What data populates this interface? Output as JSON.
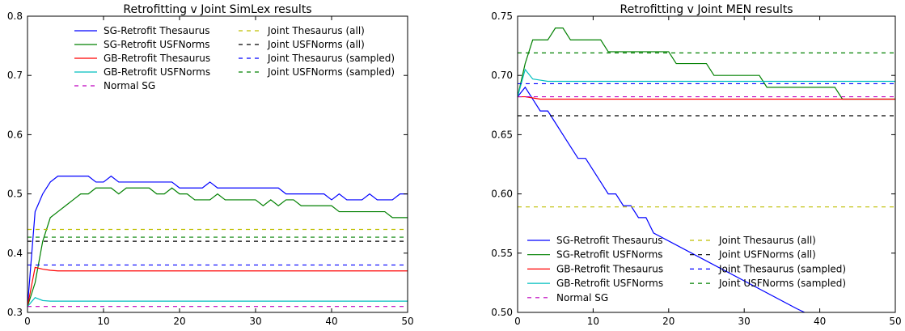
{
  "chart_data": [
    {
      "type": "line",
      "title": "Retrofitting v Joint SimLex results",
      "xlabel": "",
      "ylabel": "",
      "xlim": [
        0,
        50
      ],
      "ylim": [
        0.3,
        0.8
      ],
      "xticks": [
        "0",
        "10",
        "20",
        "30",
        "40",
        "50"
      ],
      "yticks": [
        "0.3",
        "0.4",
        "0.5",
        "0.6",
        "0.7",
        "0.8"
      ],
      "legend_location": "top",
      "series": [
        {
          "name": "SG-Retrofit Thesaurus",
          "color": "#0000ff",
          "style": "solid",
          "x": [
            0,
            1,
            2,
            3,
            4,
            5,
            6,
            7,
            8,
            9,
            10,
            11,
            12,
            13,
            14,
            15,
            16,
            17,
            18,
            19,
            20,
            21,
            22,
            23,
            24,
            25,
            26,
            27,
            28,
            29,
            30,
            31,
            32,
            33,
            34,
            35,
            36,
            37,
            38,
            39,
            40,
            41,
            42,
            43,
            44,
            45,
            46,
            47,
            48,
            49,
            50
          ],
          "y": [
            0.31,
            0.47,
            0.5,
            0.52,
            0.53,
            0.53,
            0.53,
            0.53,
            0.53,
            0.52,
            0.52,
            0.53,
            0.52,
            0.52,
            0.52,
            0.52,
            0.52,
            0.52,
            0.52,
            0.52,
            0.51,
            0.51,
            0.51,
            0.51,
            0.52,
            0.51,
            0.51,
            0.51,
            0.51,
            0.51,
            0.51,
            0.51,
            0.51,
            0.51,
            0.5,
            0.5,
            0.5,
            0.5,
            0.5,
            0.5,
            0.49,
            0.5,
            0.49,
            0.49,
            0.49,
            0.5,
            0.49,
            0.49,
            0.49,
            0.5,
            0.5
          ]
        },
        {
          "name": "SG-Retrofit USFNorms",
          "color": "#008000",
          "style": "solid",
          "x": [
            0,
            1,
            2,
            3,
            4,
            5,
            6,
            7,
            8,
            9,
            10,
            11,
            12,
            13,
            14,
            15,
            16,
            17,
            18,
            19,
            20,
            21,
            22,
            23,
            24,
            25,
            26,
            27,
            28,
            29,
            30,
            31,
            32,
            33,
            34,
            35,
            36,
            37,
            38,
            39,
            40,
            41,
            42,
            43,
            44,
            45,
            46,
            47,
            48,
            49,
            50
          ],
          "y": [
            0.31,
            0.35,
            0.42,
            0.46,
            0.47,
            0.48,
            0.49,
            0.5,
            0.5,
            0.51,
            0.51,
            0.51,
            0.5,
            0.51,
            0.51,
            0.51,
            0.51,
            0.5,
            0.5,
            0.51,
            0.5,
            0.5,
            0.49,
            0.49,
            0.49,
            0.5,
            0.49,
            0.49,
            0.49,
            0.49,
            0.49,
            0.48,
            0.49,
            0.48,
            0.49,
            0.49,
            0.48,
            0.48,
            0.48,
            0.48,
            0.48,
            0.47,
            0.47,
            0.47,
            0.47,
            0.47,
            0.47,
            0.47,
            0.46,
            0.46,
            0.46
          ]
        },
        {
          "name": "GB-Retrofit Thesaurus",
          "color": "#ff0000",
          "style": "solid",
          "x": [
            0,
            1,
            2,
            3,
            4,
            5,
            10,
            20,
            30,
            40,
            50
          ],
          "y": [
            0.31,
            0.376,
            0.373,
            0.371,
            0.37,
            0.37,
            0.37,
            0.37,
            0.37,
            0.37,
            0.37
          ]
        },
        {
          "name": "GB-Retrofit USFNorms",
          "color": "#00bfbf",
          "style": "solid",
          "x": [
            0,
            1,
            2,
            3,
            5,
            10,
            20,
            30,
            40,
            50
          ],
          "y": [
            0.31,
            0.325,
            0.32,
            0.319,
            0.319,
            0.319,
            0.319,
            0.319,
            0.319,
            0.319
          ]
        },
        {
          "name": "Normal SG",
          "color": "#bf00bf",
          "style": "dashed",
          "x": [
            0,
            50
          ],
          "y": [
            0.31,
            0.31
          ]
        },
        {
          "name": "Joint Thesaurus (all)",
          "color": "#bfbf00",
          "style": "dashed",
          "x": [
            0,
            50
          ],
          "y": [
            0.44,
            0.44
          ]
        },
        {
          "name": "Joint USFNorms (all)",
          "color": "#000000",
          "style": "dashed",
          "x": [
            0,
            50
          ],
          "y": [
            0.42,
            0.42
          ]
        },
        {
          "name": "Joint Thesaurus (sampled)",
          "color": "#0000ff",
          "style": "dashed",
          "x": [
            0,
            50
          ],
          "y": [
            0.38,
            0.38
          ]
        },
        {
          "name": "Joint USFNorms (sampled)",
          "color": "#008000",
          "style": "dashed",
          "x": [
            0,
            50
          ],
          "y": [
            0.427,
            0.427
          ]
        }
      ]
    },
    {
      "type": "line",
      "title": "Retrofitting v Joint MEN results",
      "xlabel": "",
      "ylabel": "",
      "xlim": [
        0,
        50
      ],
      "ylim": [
        0.5,
        0.75
      ],
      "xticks": [
        "0",
        "10",
        "20",
        "30",
        "40",
        "50"
      ],
      "yticks": [
        "0.50",
        "0.55",
        "0.60",
        "0.65",
        "0.70",
        "0.75"
      ],
      "legend_location": "bottom",
      "series": [
        {
          "name": "SG-Retrofit Thesaurus",
          "color": "#0000ff",
          "style": "solid",
          "x": [
            0,
            1,
            2,
            3,
            4,
            5,
            6,
            7,
            8,
            9,
            10,
            11,
            12,
            13,
            14,
            15,
            16,
            17,
            18,
            37,
            38,
            39
          ],
          "y": [
            0.682,
            0.69,
            0.68,
            0.67,
            0.67,
            0.66,
            0.65,
            0.64,
            0.63,
            0.63,
            0.62,
            0.61,
            0.6,
            0.6,
            0.59,
            0.59,
            0.58,
            0.58,
            0.567,
            0.503,
            0.5,
            0.497
          ]
        },
        {
          "name": "SG-Retrofit USFNorms",
          "color": "#008000",
          "style": "solid",
          "x": [
            0,
            1,
            2,
            3,
            4,
            5,
            6,
            7,
            8,
            9,
            10,
            11,
            12,
            13,
            14,
            15,
            16,
            17,
            18,
            19,
            20,
            21,
            22,
            23,
            24,
            25,
            26,
            27,
            28,
            29,
            30,
            31,
            32,
            33,
            34,
            35,
            36,
            37,
            38,
            39,
            40,
            41,
            42,
            43,
            44,
            45,
            46,
            47,
            48,
            49,
            50
          ],
          "y": [
            0.682,
            0.71,
            0.73,
            0.73,
            0.73,
            0.74,
            0.74,
            0.73,
            0.73,
            0.73,
            0.73,
            0.73,
            0.72,
            0.72,
            0.72,
            0.72,
            0.72,
            0.72,
            0.72,
            0.72,
            0.72,
            0.71,
            0.71,
            0.71,
            0.71,
            0.71,
            0.7,
            0.7,
            0.7,
            0.7,
            0.7,
            0.7,
            0.7,
            0.69,
            0.69,
            0.69,
            0.69,
            0.69,
            0.69,
            0.69,
            0.69,
            0.69,
            0.69,
            0.68,
            0.68,
            0.68,
            0.68,
            0.68,
            0.68,
            0.68,
            0.68
          ]
        },
        {
          "name": "GB-Retrofit Thesaurus",
          "color": "#ff0000",
          "style": "solid",
          "x": [
            0,
            1,
            2,
            3,
            5,
            10,
            20,
            30,
            40,
            50
          ],
          "y": [
            0.682,
            0.682,
            0.681,
            0.68,
            0.68,
            0.68,
            0.68,
            0.68,
            0.68,
            0.68
          ]
        },
        {
          "name": "GB-Retrofit USFNorms",
          "color": "#00bfbf",
          "style": "solid",
          "x": [
            0,
            1,
            2,
            3,
            4,
            5,
            10,
            20,
            30,
            40,
            50
          ],
          "y": [
            0.682,
            0.705,
            0.697,
            0.696,
            0.695,
            0.695,
            0.695,
            0.695,
            0.695,
            0.695,
            0.695
          ]
        },
        {
          "name": "Normal SG",
          "color": "#bf00bf",
          "style": "dashed",
          "x": [
            0,
            50
          ],
          "y": [
            0.682,
            0.682
          ]
        },
        {
          "name": "Joint Thesaurus (all)",
          "color": "#bfbf00",
          "style": "dashed",
          "x": [
            0,
            50
          ],
          "y": [
            0.589,
            0.589
          ]
        },
        {
          "name": "Joint USFNorms (all)",
          "color": "#000000",
          "style": "dashed",
          "x": [
            0,
            50
          ],
          "y": [
            0.666,
            0.666
          ]
        },
        {
          "name": "Joint Thesaurus (sampled)",
          "color": "#0000ff",
          "style": "dashed",
          "x": [
            0,
            50
          ],
          "y": [
            0.693,
            0.693
          ]
        },
        {
          "name": "Joint USFNorms (sampled)",
          "color": "#008000",
          "style": "dashed",
          "x": [
            0,
            50
          ],
          "y": [
            0.719,
            0.719
          ]
        }
      ]
    }
  ]
}
